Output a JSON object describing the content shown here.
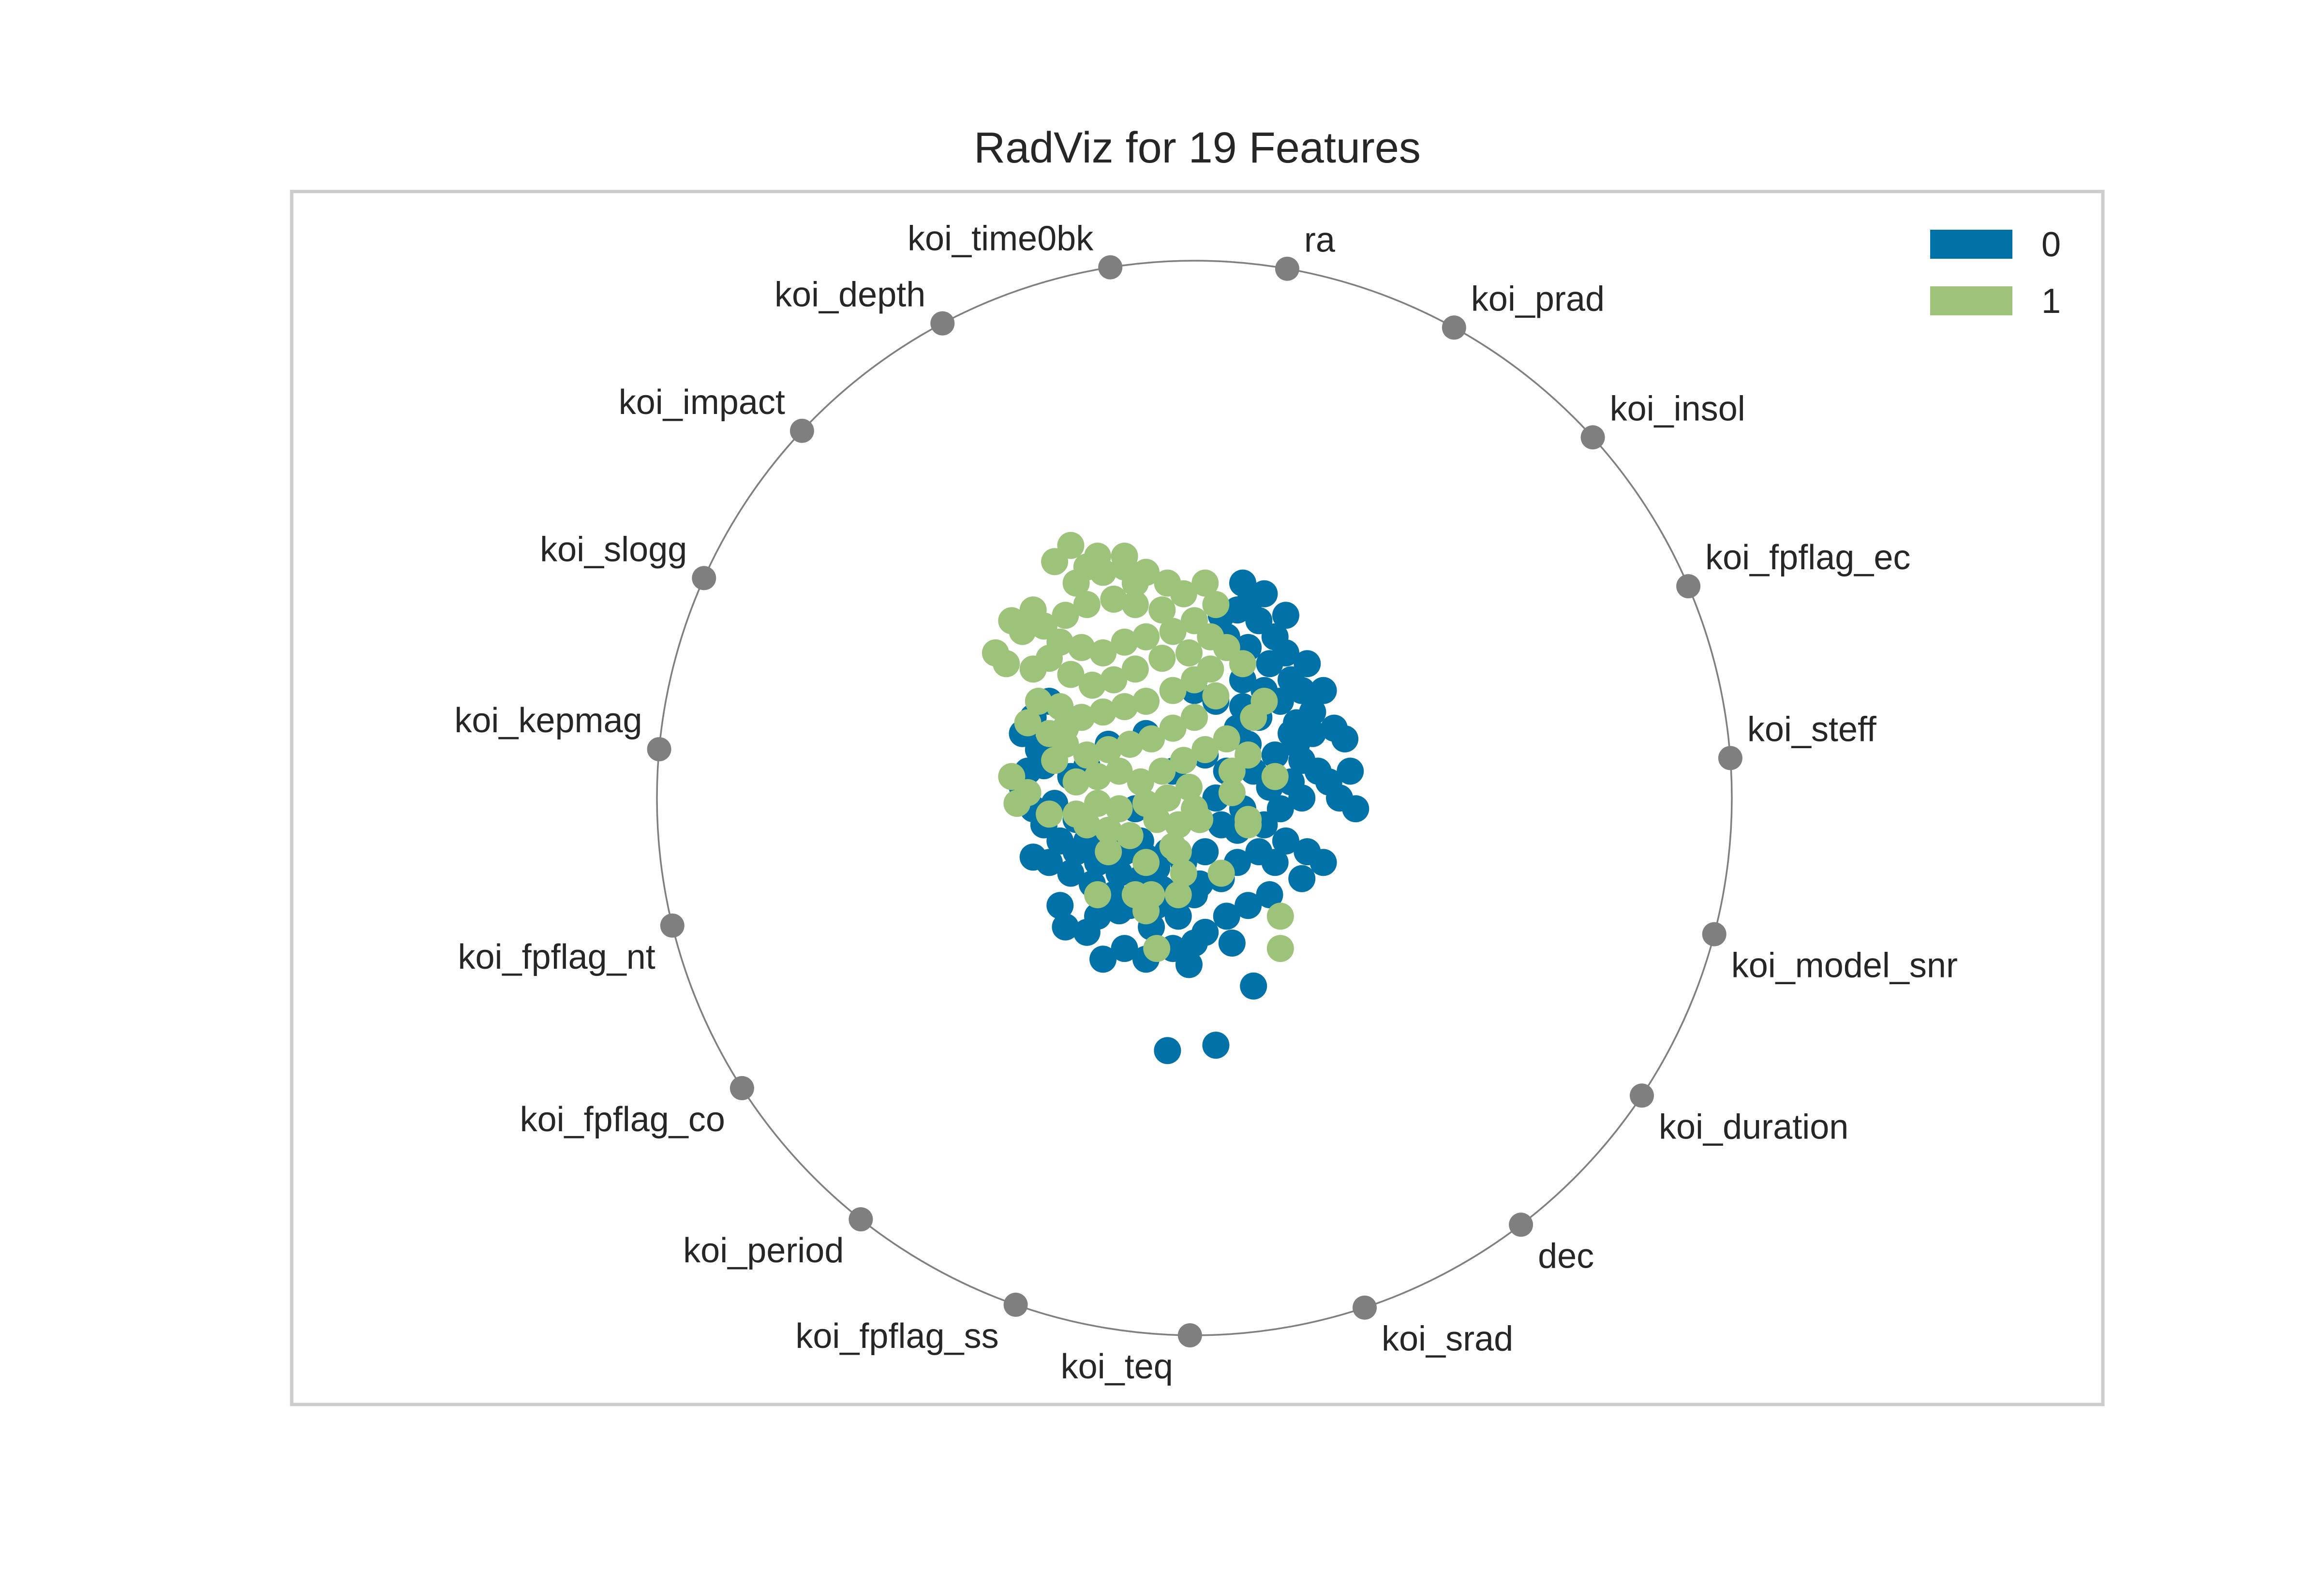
{
  "chart_data": {
    "type": "scatter",
    "title": "RadViz for 19 Features",
    "features": [
      "koi_time0bk",
      "ra",
      "koi_prad",
      "koi_insol",
      "koi_fpflag_ec",
      "koi_steff",
      "koi_model_snr",
      "koi_duration",
      "dec",
      "koi_srad",
      "koi_teq",
      "koi_fpflag_ss",
      "koi_period",
      "koi_fpflag_co",
      "koi_fpflag_nt",
      "koi_kepmag",
      "koi_slogg",
      "koi_impact",
      "koi_depth"
    ],
    "xlim": [
      -1.0,
      1.0
    ],
    "ylim": [
      -1.0,
      1.0
    ],
    "legend": {
      "position": "top-right"
    },
    "series": [
      {
        "name": "0",
        "color": "#0072a8",
        "points": [
          [
            0.09,
            0.4
          ],
          [
            0.08,
            0.35
          ],
          [
            0.05,
            0.34
          ],
          [
            0.12,
            0.33
          ],
          [
            0.15,
            0.3
          ],
          [
            0.1,
            0.28
          ],
          [
            0.14,
            0.25
          ],
          [
            0.18,
            0.22
          ],
          [
            0.2,
            0.2
          ],
          [
            0.16,
            0.18
          ],
          [
            0.22,
            0.16
          ],
          [
            0.19,
            0.14
          ],
          [
            0.12,
            0.15
          ],
          [
            0.08,
            0.13
          ],
          [
            0.1,
            0.1
          ],
          [
            0.15,
            0.08
          ],
          [
            0.2,
            0.07
          ],
          [
            0.23,
            0.05
          ],
          [
            0.18,
            0.03
          ],
          [
            0.14,
            0.02
          ],
          [
            0.06,
            0.05
          ],
          [
            0.04,
            0.0
          ],
          [
            0.09,
            -0.02
          ],
          [
            0.13,
            -0.05
          ],
          [
            0.17,
            -0.08
          ],
          [
            0.12,
            -0.1
          ],
          [
            0.08,
            -0.12
          ],
          [
            0.05,
            -0.15
          ],
          [
            0.01,
            -0.16
          ],
          [
            -0.02,
            -0.18
          ],
          [
            -0.06,
            -0.17
          ],
          [
            -0.1,
            -0.15
          ],
          [
            -0.14,
            -0.14
          ],
          [
            -0.18,
            -0.12
          ],
          [
            -0.22,
            -0.1
          ],
          [
            -0.25,
            -0.08
          ],
          [
            -0.28,
            -0.05
          ],
          [
            -0.3,
            -0.02
          ],
          [
            -0.32,
            0.02
          ],
          [
            -0.31,
            0.05
          ],
          [
            -0.29,
            0.09
          ],
          [
            -0.32,
            0.12
          ],
          [
            -0.3,
            0.15
          ],
          [
            -0.27,
            0.18
          ],
          [
            -0.25,
            0.1
          ],
          [
            -0.23,
            0.04
          ],
          [
            -0.26,
            -0.01
          ],
          [
            -0.22,
            -0.04
          ],
          [
            -0.2,
            -0.08
          ],
          [
            -0.17,
            -0.09
          ],
          [
            -0.13,
            -0.1
          ],
          [
            -0.09,
            -0.11
          ],
          [
            -0.05,
            -0.1
          ],
          [
            -0.02,
            -0.12
          ],
          [
            0.02,
            -0.1
          ],
          [
            -0.15,
            -0.18
          ],
          [
            -0.19,
            -0.16
          ],
          [
            -0.23,
            -0.14
          ],
          [
            -0.25,
            -0.2
          ],
          [
            -0.18,
            -0.22
          ],
          [
            -0.12,
            -0.2
          ],
          [
            -0.08,
            -0.24
          ],
          [
            -0.03,
            -0.22
          ],
          [
            0.02,
            -0.25
          ],
          [
            0.06,
            -0.22
          ],
          [
            -0.04,
            -0.28
          ],
          [
            -0.01,
            -0.31
          ],
          [
            0.0,
            -0.27
          ],
          [
            -0.13,
            -0.28
          ],
          [
            -0.2,
            -0.25
          ],
          [
            -0.24,
            -0.24
          ],
          [
            -0.17,
            -0.3
          ],
          [
            0.11,
            -0.35
          ],
          [
            -0.05,
            -0.47
          ],
          [
            0.04,
            -0.46
          ],
          [
            -0.09,
            -0.3
          ],
          [
            0.07,
            -0.27
          ],
          [
            0.1,
            -0.2
          ],
          [
            0.14,
            -0.18
          ],
          [
            0.01,
            -0.04
          ],
          [
            0.08,
            -0.06
          ],
          [
            0.2,
            -0.15
          ],
          [
            0.24,
            -0.12
          ],
          [
            0.27,
            0.0
          ],
          [
            0.29,
            0.05
          ],
          [
            0.2,
            0.0
          ],
          [
            0.25,
            0.03
          ],
          [
            0.18,
            0.12
          ],
          [
            0.21,
            0.25
          ],
          [
            0.17,
            0.27
          ],
          [
            0.13,
            0.38
          ],
          [
            0.1,
            0.36
          ],
          [
            0.06,
            0.3
          ],
          [
            0.09,
            0.22
          ],
          [
            0.04,
            0.18
          ],
          [
            0.0,
            0.2
          ],
          [
            0.13,
            0.2
          ],
          [
            -0.09,
            0.12
          ],
          [
            -0.16,
            0.1
          ],
          [
            -0.2,
            0.06
          ],
          [
            -0.28,
            0.06
          ],
          [
            0.02,
            0.08
          ],
          [
            -0.04,
            0.05
          ],
          [
            -0.11,
            -0.02
          ],
          [
            -0.27,
            -0.12
          ],
          [
            -0.3,
            -0.11
          ],
          [
            -0.14,
            -0.21
          ],
          [
            0.05,
            -0.05
          ],
          [
            -0.07,
            -0.2
          ],
          [
            0.0,
            -0.18
          ],
          [
            0.15,
            -0.12
          ],
          [
            0.16,
            -0.02
          ],
          [
            0.19,
            0.1
          ],
          [
            0.22,
            0.12
          ],
          [
            0.24,
            0.2
          ],
          [
            0.09,
            0.17
          ],
          [
            0.17,
            0.34
          ],
          [
            0.28,
            0.11
          ],
          [
            0.3,
            -0.02
          ],
          [
            0.26,
            0.13
          ],
          [
            0.11,
            0.05
          ],
          [
            -0.07,
            -0.13
          ],
          [
            -0.1,
            -0.08
          ],
          [
            0.21,
            -0.1
          ]
        ]
      },
      {
        "name": "1",
        "color": "#9dc37a",
        "points": [
          [
            -0.26,
            0.44
          ],
          [
            -0.2,
            0.43
          ],
          [
            -0.17,
            0.42
          ],
          [
            -0.13,
            0.43
          ],
          [
            -0.09,
            0.42
          ],
          [
            -0.05,
            0.4
          ],
          [
            -0.02,
            0.38
          ],
          [
            -0.06,
            0.35
          ],
          [
            -0.11,
            0.36
          ],
          [
            -0.15,
            0.37
          ],
          [
            -0.2,
            0.36
          ],
          [
            -0.24,
            0.34
          ],
          [
            -0.28,
            0.32
          ],
          [
            -0.3,
            0.35
          ],
          [
            -0.32,
            0.31
          ],
          [
            -0.25,
            0.29
          ],
          [
            -0.21,
            0.28
          ],
          [
            -0.17,
            0.27
          ],
          [
            -0.13,
            0.29
          ],
          [
            -0.09,
            0.3
          ],
          [
            -0.04,
            0.31
          ],
          [
            0.0,
            0.33
          ],
          [
            -0.01,
            0.27
          ],
          [
            -0.06,
            0.26
          ],
          [
            -0.11,
            0.24
          ],
          [
            -0.15,
            0.22
          ],
          [
            -0.19,
            0.21
          ],
          [
            -0.23,
            0.23
          ],
          [
            -0.27,
            0.26
          ],
          [
            -0.3,
            0.24
          ],
          [
            -0.29,
            0.18
          ],
          [
            -0.25,
            0.17
          ],
          [
            -0.21,
            0.15
          ],
          [
            -0.17,
            0.16
          ],
          [
            -0.13,
            0.17
          ],
          [
            -0.09,
            0.18
          ],
          [
            -0.04,
            0.2
          ],
          [
            0.0,
            0.22
          ],
          [
            0.03,
            0.24
          ],
          [
            0.04,
            0.19
          ],
          [
            0.0,
            0.15
          ],
          [
            -0.04,
            0.13
          ],
          [
            -0.08,
            0.11
          ],
          [
            -0.12,
            0.1
          ],
          [
            -0.16,
            0.09
          ],
          [
            -0.2,
            0.08
          ],
          [
            -0.24,
            0.1
          ],
          [
            -0.27,
            0.12
          ],
          [
            -0.22,
            0.03
          ],
          [
            -0.18,
            0.04
          ],
          [
            -0.14,
            0.05
          ],
          [
            -0.1,
            0.03
          ],
          [
            -0.06,
            0.05
          ],
          [
            -0.02,
            0.07
          ],
          [
            0.02,
            0.09
          ],
          [
            0.06,
            0.11
          ],
          [
            -0.01,
            0.02
          ],
          [
            -0.05,
            0.0
          ],
          [
            -0.09,
            -0.01
          ],
          [
            -0.14,
            -0.02
          ],
          [
            -0.18,
            -0.01
          ],
          [
            -0.22,
            -0.03
          ],
          [
            -0.07,
            -0.04
          ],
          [
            -0.03,
            -0.05
          ],
          [
            0.01,
            -0.04
          ],
          [
            -0.12,
            -0.07
          ],
          [
            -0.16,
            -0.06
          ],
          [
            -0.2,
            -0.05
          ],
          [
            -0.27,
            -0.03
          ],
          [
            -0.31,
            0.01
          ],
          [
            -0.34,
            0.04
          ],
          [
            -0.26,
            0.07
          ],
          [
            -0.31,
            0.14
          ],
          [
            -0.35,
            0.25
          ],
          [
            -0.34,
            0.33
          ],
          [
            -0.04,
            -0.09
          ],
          [
            -0.09,
            -0.12
          ],
          [
            -0.16,
            -0.1
          ],
          [
            0.07,
            0.05
          ],
          [
            0.1,
            0.08
          ],
          [
            0.11,
            0.15
          ],
          [
            0.09,
            0.25
          ],
          [
            0.06,
            0.28
          ],
          [
            0.04,
            0.36
          ],
          [
            0.02,
            0.4
          ],
          [
            -0.22,
            0.4
          ],
          [
            -0.18,
            0.45
          ],
          [
            -0.11,
            0.4
          ],
          [
            0.07,
            0.01
          ],
          [
            0.0,
            -0.02
          ],
          [
            -0.08,
            -0.18
          ],
          [
            -0.03,
            -0.18
          ],
          [
            -0.18,
            -0.18
          ],
          [
            -0.11,
            -0.18
          ],
          [
            -0.02,
            -0.14
          ],
          [
            0.05,
            -0.14
          ],
          [
            0.1,
            -0.04
          ],
          [
            0.15,
            0.04
          ],
          [
            0.13,
            0.18
          ],
          [
            0.1,
            -0.05
          ],
          [
            -0.23,
            0.47
          ],
          [
            -0.13,
            0.45
          ],
          [
            0.03,
            0.3
          ],
          [
            -0.07,
            -0.28
          ],
          [
            -0.09,
            -0.21
          ],
          [
            -0.03,
            -0.1
          ],
          [
            0.16,
            -0.22
          ],
          [
            0.16,
            -0.28
          ],
          [
            -0.37,
            0.27
          ],
          [
            -0.24,
            0.13
          ],
          [
            -0.33,
            -0.01
          ]
        ]
      }
    ]
  }
}
